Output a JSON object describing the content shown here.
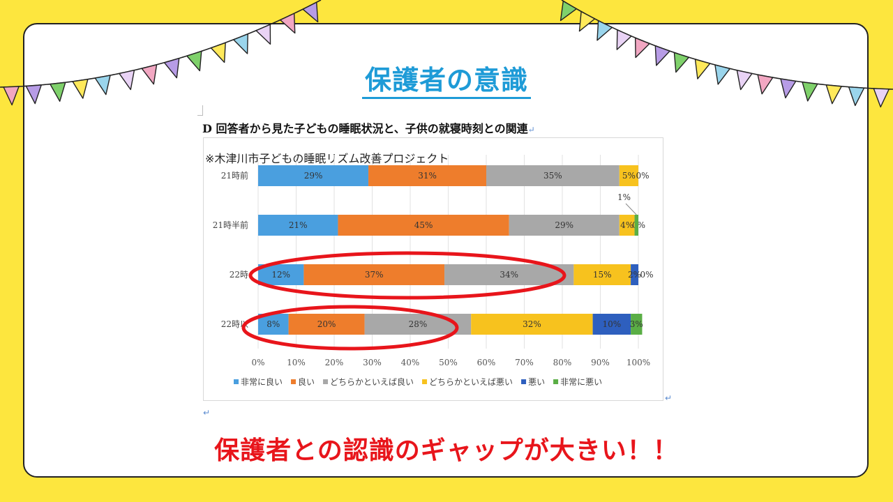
{
  "slide_title": "保護者の意識",
  "doc_heading": "D 回答者から見た子どもの睡眠状況と、子供の就寝時刻との関連",
  "return_mark": "↵",
  "source_note": "※木津川市子どもの睡眠リズム改善プロジェクト",
  "footer_message": "保護者との認識のギャップが大きい！！",
  "colors": {
    "background": "#FDE63E",
    "title": "#1E9BD7",
    "footer": "#E8151B",
    "highlight": "#E8151B"
  },
  "chart_data": {
    "type": "bar",
    "orientation": "horizontal",
    "stacked": "percent",
    "categories": [
      "21時前",
      "21時半前",
      "22時前",
      "22時以降"
    ],
    "category_labels_visible": [
      "21時前",
      "21時半前",
      "22時",
      "22時以"
    ],
    "series": [
      {
        "name": "非常に良い",
        "color": "#4A9FDF",
        "values": [
          29,
          21,
          12,
          8
        ]
      },
      {
        "name": "良い",
        "color": "#EE7D2C",
        "values": [
          31,
          45,
          37,
          20
        ]
      },
      {
        "name": "どちらかといえば良い",
        "color": "#A8A8A8",
        "values": [
          35,
          29,
          34,
          28
        ]
      },
      {
        "name": "どちらかといえば悪い",
        "color": "#F7C21E",
        "values": [
          5,
          4,
          15,
          32
        ]
      },
      {
        "name": "悪い",
        "color": "#2E5FBE",
        "values": [
          0,
          0,
          2,
          10
        ]
      },
      {
        "name": "非常に悪い",
        "color": "#5AAE45",
        "values": [
          0,
          1,
          0,
          3
        ]
      }
    ],
    "data_labels": [
      [
        "29%",
        "31%",
        "35%",
        "5%",
        "0%",
        ""
      ],
      [
        "21%",
        "45%",
        "29%",
        "4%",
        "0%",
        ""
      ],
      [
        "12%",
        "37%",
        "34%",
        "15%",
        "2%",
        "0%"
      ],
      [
        "8%",
        "20%",
        "28%",
        "32%",
        "10%",
        "3%"
      ]
    ],
    "callout_label": "1%",
    "xaxis": {
      "ticks": [
        "0%",
        "10%",
        "20%",
        "30%",
        "40%",
        "50%",
        "60%",
        "70%",
        "80%",
        "90%",
        "100%"
      ],
      "range": [
        0,
        100
      ]
    },
    "grid": true,
    "legend_position": "bottom",
    "highlighted_categories": [
      "22時前",
      "22時以降"
    ]
  }
}
